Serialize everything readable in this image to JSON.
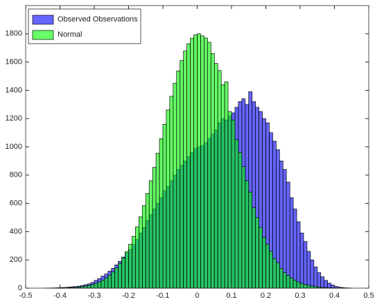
{
  "chart_data": {
    "type": "histogram",
    "bins": [
      -0.48,
      -0.47,
      -0.46,
      -0.45,
      -0.44,
      -0.43,
      -0.42,
      -0.41,
      -0.4,
      -0.39,
      -0.38,
      -0.37,
      -0.36,
      -0.35,
      -0.34,
      -0.33,
      -0.32,
      -0.31,
      -0.3,
      -0.29,
      -0.28,
      -0.27,
      -0.26,
      -0.25,
      -0.24,
      -0.23,
      -0.22,
      -0.21,
      -0.2,
      -0.19,
      -0.18,
      -0.17,
      -0.16,
      -0.15,
      -0.14,
      -0.13,
      -0.12,
      -0.11,
      -0.1,
      -0.09,
      -0.08,
      -0.07,
      -0.06,
      -0.05,
      -0.04,
      -0.03,
      -0.02,
      -0.01,
      0,
      0.01,
      0.02,
      0.03,
      0.04,
      0.05,
      0.06,
      0.07,
      0.08,
      0.09,
      0.1,
      0.11,
      0.12,
      0.13,
      0.14,
      0.15,
      0.16,
      0.17,
      0.18,
      0.19,
      0.2,
      0.21,
      0.22,
      0.23,
      0.24,
      0.25,
      0.26,
      0.27,
      0.28,
      0.29,
      0.3,
      0.31,
      0.32,
      0.33,
      0.34,
      0.35,
      0.36,
      0.37,
      0.38,
      0.39,
      0.4,
      0.41,
      0.42,
      0.43,
      0.44,
      0.45,
      0.46
    ],
    "series": [
      {
        "name": "Observed Observations",
        "color": "#0000ff",
        "values": [
          0,
          0,
          0,
          0,
          1,
          1,
          2,
          3,
          4,
          5,
          7,
          9,
          11,
          14,
          18,
          24,
          30,
          40,
          55,
          68,
          85,
          100,
          120,
          140,
          165,
          190,
          220,
          250,
          275,
          310,
          345,
          390,
          430,
          480,
          520,
          560,
          600,
          640,
          690,
          720,
          760,
          800,
          840,
          870,
          900,
          930,
          960,
          990,
          1000,
          1010,
          1030,
          1060,
          1090,
          1120,
          1170,
          1200,
          1190,
          1220,
          1240,
          1280,
          1320,
          1340,
          1300,
          1390,
          1320,
          1280,
          1250,
          1200,
          1170,
          1100,
          1040,
          980,
          900,
          840,
          750,
          640,
          560,
          470,
          390,
          330,
          260,
          200,
          150,
          110,
          80,
          55,
          35,
          22,
          12,
          7,
          4,
          2,
          1,
          0
        ]
      },
      {
        "name": "Normal",
        "color": "#00ff00",
        "values": [
          0,
          0,
          0,
          0,
          0,
          1,
          1,
          1,
          2,
          2,
          3,
          4,
          6,
          8,
          11,
          15,
          20,
          26,
          34,
          44,
          57,
          73,
          92,
          115,
          143,
          175,
          214,
          259,
          310,
          367,
          433,
          505,
          584,
          670,
          760,
          855,
          955,
          1057,
          1160,
          1261,
          1358,
          1450,
          1537,
          1612,
          1678,
          1730,
          1769,
          1792,
          1800,
          1785,
          1770,
          1740,
          1660,
          1590,
          1540,
          1440,
          1460,
          1250,
          1190,
          1050,
          960,
          860,
          760,
          680,
          570,
          500,
          430,
          360,
          310,
          260,
          210,
          180,
          140,
          110,
          90,
          72,
          57,
          44,
          34,
          26,
          20,
          15,
          11,
          8,
          6,
          4,
          3,
          2,
          2,
          1,
          1,
          0,
          0,
          0
        ]
      }
    ],
    "xlim": [
      -0.5,
      0.5
    ],
    "xticks": [
      -0.5,
      -0.4,
      -0.3,
      -0.2,
      -0.1,
      0,
      0.1,
      0.2,
      0.3,
      0.4,
      0.5
    ],
    "ylim": [
      0,
      2000
    ],
    "yticks": [
      0,
      200,
      400,
      600,
      800,
      1000,
      1200,
      1400,
      1600,
      1800
    ],
    "legend": "upper left",
    "opacity": 0.6
  }
}
